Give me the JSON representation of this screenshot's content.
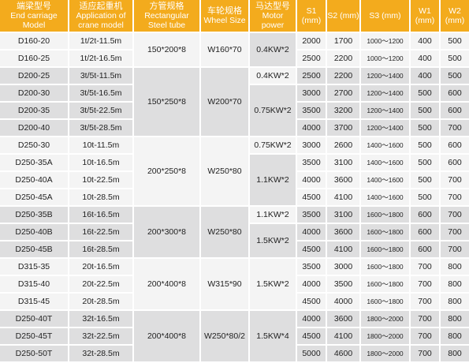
{
  "headers": [
    {
      "zh": "端梁型号",
      "en": "End carriage Model"
    },
    {
      "zh": "适应起重机",
      "en": "Application of crane model"
    },
    {
      "zh": "方管规格",
      "en": "Rectangular Steel tube"
    },
    {
      "zh": "车轮规格",
      "en": "Wheel Size"
    },
    {
      "zh": "马达型号",
      "en": "Motor power"
    },
    {
      "zh": "",
      "en": "S1 (mm)"
    },
    {
      "zh": "",
      "en": "S2 (mm)"
    },
    {
      "zh": "",
      "en": "S3 (mm)"
    },
    {
      "zh": "",
      "en": "W1 (mm)"
    },
    {
      "zh": "",
      "en": "W2 (mm)"
    }
  ],
  "rows": [
    {
      "model": "D160-20",
      "crane": "1t/2t-11.5m",
      "s1": "2000",
      "s2": "1700",
      "s3": "1000～1200",
      "w1": "400",
      "w2": "500"
    },
    {
      "model": "D160-25",
      "crane": "1t/2t-16.5m",
      "s1": "2500",
      "s2": "2200",
      "s3": "1000～1200",
      "w1": "400",
      "w2": "500"
    },
    {
      "model": "D200-25",
      "crane": "3t/5t-11.5m",
      "s1": "2500",
      "s2": "2200",
      "s3": "1200～1400",
      "w1": "400",
      "w2": "500"
    },
    {
      "model": "D200-30",
      "crane": "3t/5t-16.5m",
      "s1": "3000",
      "s2": "2700",
      "s3": "1200～1400",
      "w1": "500",
      "w2": "600"
    },
    {
      "model": "D200-35",
      "crane": "3t/5t-22.5m",
      "s1": "3500",
      "s2": "3200",
      "s3": "1200～1400",
      "w1": "500",
      "w2": "600"
    },
    {
      "model": "D200-40",
      "crane": "3t/5t-28.5m",
      "s1": "4000",
      "s2": "3700",
      "s3": "1200～1400",
      "w1": "500",
      "w2": "700"
    },
    {
      "model": "D250-30",
      "crane": "10t-11.5m",
      "s1": "3000",
      "s2": "2600",
      "s3": "1400～1600",
      "w1": "500",
      "w2": "600"
    },
    {
      "model": "D250-35A",
      "crane": "10t-16.5m",
      "s1": "3500",
      "s2": "3100",
      "s3": "1400～1600",
      "w1": "500",
      "w2": "600"
    },
    {
      "model": "D250-40A",
      "crane": "10t-22.5m",
      "s1": "4000",
      "s2": "3600",
      "s3": "1400～1600",
      "w1": "500",
      "w2": "700"
    },
    {
      "model": "D250-45A",
      "crane": "10t-28.5m",
      "s1": "4500",
      "s2": "4100",
      "s3": "1400～1600",
      "w1": "500",
      "w2": "700"
    },
    {
      "model": "D250-35B",
      "crane": "16t-16.5m",
      "s1": "3500",
      "s2": "3100",
      "s3": "1600～1800",
      "w1": "600",
      "w2": "700"
    },
    {
      "model": "D250-40B",
      "crane": "16t-22.5m",
      "s1": "4000",
      "s2": "3600",
      "s3": "1600～1800",
      "w1": "600",
      "w2": "700"
    },
    {
      "model": "D250-45B",
      "crane": "16t-28.5m",
      "s1": "4500",
      "s2": "4100",
      "s3": "1600～1800",
      "w1": "600",
      "w2": "700"
    },
    {
      "model": "D315-35",
      "crane": "20t-16.5m",
      "s1": "3500",
      "s2": "3000",
      "s3": "1600～1800",
      "w1": "700",
      "w2": "800"
    },
    {
      "model": "D315-40",
      "crane": "20t-22.5m",
      "s1": "4000",
      "s2": "3500",
      "s3": "1600～1800",
      "w1": "700",
      "w2": "800"
    },
    {
      "model": "D315-45",
      "crane": "20t-28.5m",
      "s1": "4500",
      "s2": "4000",
      "s3": "1600～1800",
      "w1": "700",
      "w2": "800"
    },
    {
      "model": "D250-40T",
      "crane": "32t-16.5m",
      "s1": "4000",
      "s2": "3600",
      "s3": "1800～2000",
      "w1": "700",
      "w2": "800"
    },
    {
      "model": "D250-45T",
      "crane": "32t-22.5m",
      "s1": "4500",
      "s2": "4100",
      "s3": "1800～2000",
      "w1": "700",
      "w2": "800"
    },
    {
      "model": "D250-50T",
      "crane": "32t-28.5m",
      "s1": "5000",
      "s2": "4600",
      "s3": "1800～2000",
      "w1": "700",
      "w2": "800"
    }
  ],
  "groups": [
    {
      "tube": "150*200*8",
      "wheel": "W160*70"
    },
    {
      "tube": "150*250*8",
      "wheel": "W200*70"
    },
    {
      "tube": "200*250*8",
      "wheel": "W250*80"
    },
    {
      "tube": "200*300*8",
      "wheel": "W250*80"
    },
    {
      "tube": "200*400*8",
      "wheel": "W315*90"
    },
    {
      "tube": "200*400*8",
      "wheel": "W250*80/2"
    }
  ],
  "motors": [
    "0.4KW*2",
    "0.4KW*2",
    "0.75KW*2",
    "0.75KW*2",
    "1.1KW*2",
    "1.1KW*2",
    "1.5KW*2",
    "1.5KW*2",
    "1.5KW*4"
  ],
  "colors": {
    "header": "#f3ab1d",
    "row_light": "#f4f4f4",
    "row_dark": "#dededf"
  }
}
